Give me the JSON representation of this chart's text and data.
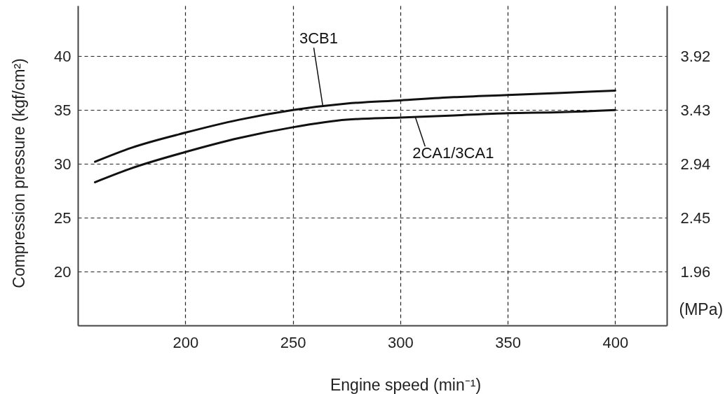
{
  "chart_data": {
    "type": "line",
    "xlabel": "Engine speed (min⁻¹)",
    "ylabel": "Compression pressure (kgf/cm²)",
    "y2label": "(MPa)",
    "x": [
      158,
      175,
      200,
      225,
      250,
      275,
      300,
      325,
      350,
      375,
      400
    ],
    "series": [
      {
        "name": "3CB1",
        "color": "#111111",
        "values": [
          30.2,
          31.5,
          32.9,
          34.1,
          35.0,
          35.6,
          35.9,
          36.2,
          36.4,
          36.6,
          36.8
        ]
      },
      {
        "name": "2CA1/3CA1",
        "color": "#111111",
        "values": [
          28.3,
          29.6,
          31.1,
          32.4,
          33.4,
          34.1,
          34.3,
          34.5,
          34.7,
          34.8,
          35.0
        ]
      }
    ],
    "xlim": [
      150,
      424
    ],
    "ylim": [
      15,
      44.7
    ],
    "y2lim": [
      1.47,
      4.38
    ],
    "xticks": [
      200,
      250,
      300,
      350,
      400
    ],
    "yticks": [
      20,
      25,
      30,
      35,
      40
    ],
    "y2ticks": [
      1.96,
      2.45,
      2.94,
      3.43,
      3.92
    ],
    "grid": true
  }
}
